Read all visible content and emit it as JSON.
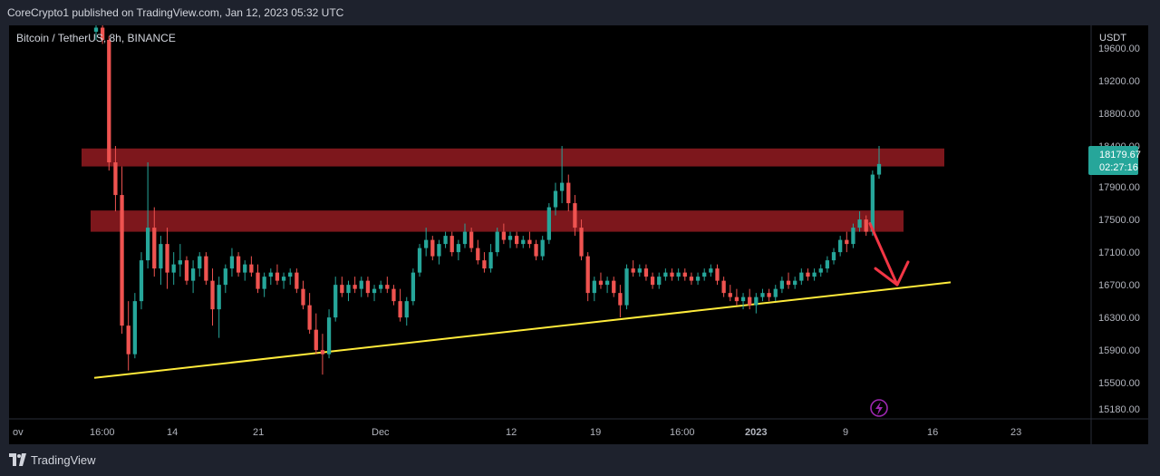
{
  "header": {
    "published_text": "CoreCrypto1 published on TradingView.com, Jan 12, 2023 05:32 UTC"
  },
  "footer": {
    "brand": "TradingView"
  },
  "chart_data": {
    "type": "candlestick",
    "symbol_label": "Bitcoin / TetherUS, 8h, BINANCE",
    "currency": "USDT",
    "ylim": [
      15180,
      19900
    ],
    "y_ticks": [
      15180,
      15500,
      15900,
      16300,
      16700,
      17100,
      17500,
      17900,
      18400,
      18800,
      19200,
      19600
    ],
    "x_ticks": [
      "ov",
      "16:00",
      "14",
      "21",
      "Dec",
      "12",
      "19",
      "16:00",
      "2023",
      "9",
      "16",
      "23"
    ],
    "last_price": {
      "value": "18179.67",
      "countdown": "02:27:16"
    },
    "zones": [
      {
        "name": "upper-resistance",
        "from": 18150,
        "to": 18370,
        "color": "#8b1a1f"
      },
      {
        "name": "lower-resistance",
        "from": 17350,
        "to": 17610,
        "color": "#8b1a1f"
      }
    ],
    "trendline": {
      "start": 15560,
      "end": 16730,
      "color": "#ffeb3b"
    },
    "arrow_color": "#f23645",
    "colors": {
      "up": "#26a69a",
      "down": "#ef5350",
      "axis_text": "#b2b5be",
      "badge": "#26a69a"
    },
    "candles": [
      [
        19800,
        19950,
        19700,
        19850
      ],
      [
        19850,
        19900,
        19650,
        19700
      ],
      [
        19700,
        19750,
        18100,
        18200
      ],
      [
        18200,
        18400,
        17600,
        17800
      ],
      [
        17800,
        18150,
        16100,
        16200
      ],
      [
        16200,
        16500,
        15650,
        15850
      ],
      [
        15850,
        16600,
        15800,
        16500
      ],
      [
        16500,
        17100,
        16400,
        17000
      ],
      [
        17000,
        18200,
        16900,
        17400
      ],
      [
        17400,
        17650,
        16800,
        16900
      ],
      [
        16900,
        17300,
        16700,
        17200
      ],
      [
        17200,
        17400,
        16650,
        16850
      ],
      [
        16850,
        17100,
        16700,
        16950
      ],
      [
        16950,
        17200,
        16800,
        17000
      ],
      [
        17000,
        17050,
        16700,
        16750
      ],
      [
        16750,
        17000,
        16600,
        16900
      ],
      [
        16900,
        17100,
        16800,
        17050
      ],
      [
        17050,
        17100,
        16700,
        16750
      ],
      [
        16750,
        16900,
        16200,
        16400
      ],
      [
        16400,
        16800,
        16050,
        16700
      ],
      [
        16700,
        16950,
        16600,
        16900
      ],
      [
        16900,
        17150,
        16800,
        17050
      ],
      [
        17050,
        17100,
        16800,
        16850
      ],
      [
        16850,
        17000,
        16750,
        16950
      ],
      [
        16950,
        17050,
        16800,
        16850
      ],
      [
        16850,
        16950,
        16600,
        16650
      ],
      [
        16650,
        16850,
        16550,
        16800
      ],
      [
        16800,
        16900,
        16700,
        16850
      ],
      [
        16850,
        16950,
        16700,
        16750
      ],
      [
        16750,
        16850,
        16650,
        16800
      ],
      [
        16800,
        16900,
        16700,
        16850
      ],
      [
        16850,
        16900,
        16600,
        16650
      ],
      [
        16650,
        16750,
        16400,
        16450
      ],
      [
        16450,
        16600,
        16100,
        16150
      ],
      [
        16150,
        16350,
        15850,
        15900
      ],
      [
        15900,
        16100,
        15600,
        15850
      ],
      [
        15850,
        16400,
        15800,
        16300
      ],
      [
        16300,
        16800,
        16250,
        16700
      ],
      [
        16700,
        16800,
        16550,
        16600
      ],
      [
        16600,
        16750,
        16500,
        16700
      ],
      [
        16700,
        16800,
        16600,
        16650
      ],
      [
        16650,
        16800,
        16550,
        16750
      ],
      [
        16750,
        16800,
        16550,
        16600
      ],
      [
        16600,
        16700,
        16500,
        16650
      ],
      [
        16650,
        16750,
        16600,
        16700
      ],
      [
        16700,
        16800,
        16600,
        16650
      ],
      [
        16650,
        16700,
        16450,
        16500
      ],
      [
        16500,
        16650,
        16250,
        16300
      ],
      [
        16300,
        16550,
        16200,
        16500
      ],
      [
        16500,
        16900,
        16450,
        16850
      ],
      [
        16850,
        17200,
        16800,
        17150
      ],
      [
        17150,
        17400,
        17050,
        17250
      ],
      [
        17250,
        17300,
        17000,
        17050
      ],
      [
        17050,
        17250,
        16950,
        17200
      ],
      [
        17200,
        17350,
        17150,
        17300
      ],
      [
        17300,
        17350,
        17050,
        17100
      ],
      [
        17100,
        17250,
        17000,
        17200
      ],
      [
        17200,
        17450,
        17150,
        17350
      ],
      [
        17350,
        17400,
        17100,
        17150
      ],
      [
        17150,
        17250,
        16950,
        17000
      ],
      [
        17000,
        17100,
        16850,
        16900
      ],
      [
        16900,
        17200,
        16850,
        17100
      ],
      [
        17100,
        17400,
        17050,
        17350
      ],
      [
        17350,
        17450,
        17200,
        17250
      ],
      [
        17250,
        17350,
        17150,
        17300
      ],
      [
        17300,
        17350,
        17150,
        17200
      ],
      [
        17200,
        17300,
        17150,
        17250
      ],
      [
        17250,
        17350,
        17150,
        17200
      ],
      [
        17200,
        17250,
        17000,
        17050
      ],
      [
        17050,
        17300,
        17000,
        17250
      ],
      [
        17250,
        17700,
        17200,
        17650
      ],
      [
        17650,
        17950,
        17550,
        17850
      ],
      [
        17850,
        18400,
        17700,
        17950
      ],
      [
        17950,
        18050,
        17600,
        17700
      ],
      [
        17700,
        17800,
        17300,
        17400
      ],
      [
        17400,
        17500,
        17000,
        17050
      ],
      [
        17050,
        17100,
        16500,
        16600
      ],
      [
        16600,
        16800,
        16500,
        16750
      ],
      [
        16750,
        16850,
        16650,
        16700
      ],
      [
        16700,
        16800,
        16600,
        16750
      ],
      [
        16750,
        16800,
        16550,
        16600
      ],
      [
        16600,
        16700,
        16300,
        16450
      ],
      [
        16450,
        16950,
        16400,
        16900
      ],
      [
        16900,
        17000,
        16800,
        16850
      ],
      [
        16850,
        16950,
        16800,
        16900
      ],
      [
        16900,
        16950,
        16750,
        16800
      ],
      [
        16800,
        16850,
        16650,
        16700
      ],
      [
        16700,
        16850,
        16650,
        16800
      ],
      [
        16800,
        16900,
        16750,
        16850
      ],
      [
        16850,
        16900,
        16750,
        16800
      ],
      [
        16800,
        16900,
        16750,
        16850
      ],
      [
        16850,
        16900,
        16750,
        16800
      ],
      [
        16800,
        16850,
        16700,
        16750
      ],
      [
        16750,
        16850,
        16700,
        16800
      ],
      [
        16800,
        16900,
        16750,
        16850
      ],
      [
        16850,
        16950,
        16800,
        16900
      ],
      [
        16900,
        16950,
        16700,
        16750
      ],
      [
        16750,
        16800,
        16550,
        16600
      ],
      [
        16600,
        16700,
        16500,
        16550
      ],
      [
        16550,
        16650,
        16450,
        16500
      ],
      [
        16500,
        16600,
        16400,
        16550
      ],
      [
        16550,
        16650,
        16400,
        16450
      ],
      [
        16450,
        16600,
        16350,
        16550
      ],
      [
        16550,
        16650,
        16500,
        16600
      ],
      [
        16600,
        16650,
        16500,
        16550
      ],
      [
        16550,
        16700,
        16500,
        16650
      ],
      [
        16650,
        16800,
        16600,
        16750
      ],
      [
        16750,
        16850,
        16650,
        16700
      ],
      [
        16700,
        16800,
        16650,
        16750
      ],
      [
        16750,
        16900,
        16700,
        16850
      ],
      [
        16850,
        16900,
        16750,
        16800
      ],
      [
        16800,
        16900,
        16750,
        16850
      ],
      [
        16850,
        16950,
        16800,
        16900
      ],
      [
        16900,
        17050,
        16850,
        17000
      ],
      [
        17000,
        17150,
        16950,
        17100
      ],
      [
        17100,
        17300,
        17050,
        17250
      ],
      [
        17250,
        17350,
        17100,
        17200
      ],
      [
        17200,
        17450,
        17150,
        17400
      ],
      [
        17400,
        17600,
        17350,
        17500
      ],
      [
        17500,
        17550,
        17300,
        17350
      ],
      [
        17350,
        18100,
        17300,
        18050
      ],
      [
        18050,
        18400,
        18000,
        18180
      ]
    ]
  }
}
